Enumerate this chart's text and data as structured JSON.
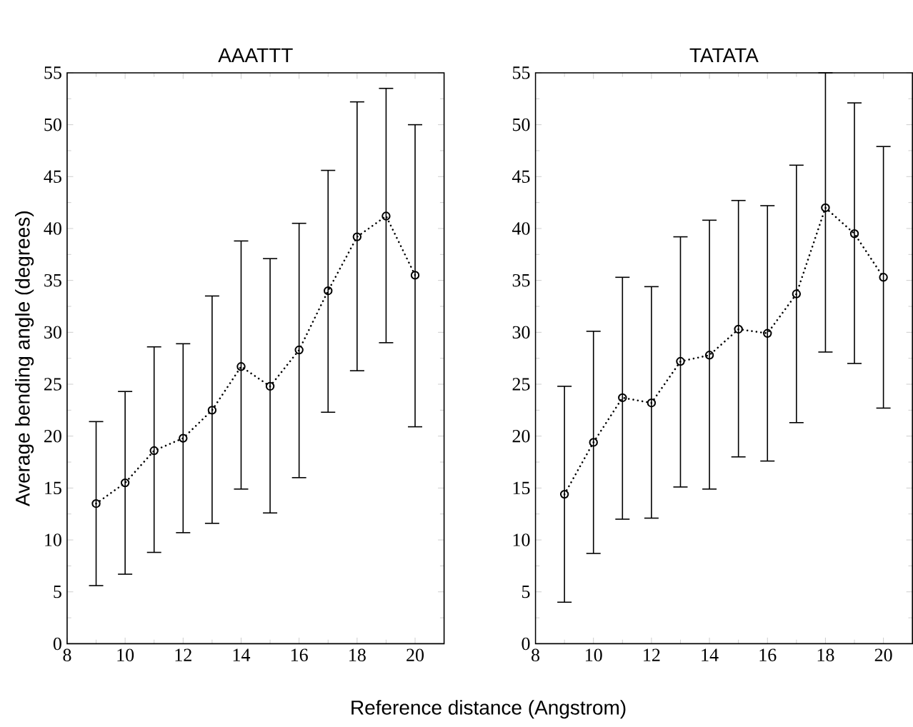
{
  "chart_data": [
    {
      "type": "line",
      "title": "AAATTT",
      "xlabel": "Reference distance (Angstrom)",
      "ylabel": "Average bending angle (degrees)",
      "x": [
        9,
        10,
        11,
        12,
        13,
        14,
        15,
        16,
        17,
        18,
        19,
        20
      ],
      "series": [
        {
          "color": "#000000",
          "values": [
            13.5,
            15.5,
            18.6,
            19.8,
            22.5,
            26.7,
            24.8,
            28.3,
            34.0,
            39.2,
            41.2,
            35.5
          ],
          "errors": [
            [
              5.6,
              21.4
            ],
            [
              6.7,
              24.3
            ],
            [
              8.8,
              28.6
            ],
            [
              10.7,
              28.9
            ],
            [
              11.6,
              33.5
            ],
            [
              14.9,
              38.8
            ],
            [
              12.6,
              37.1
            ],
            [
              16.0,
              40.5
            ],
            [
              22.3,
              45.6
            ],
            [
              26.3,
              52.2
            ],
            [
              29.0,
              53.5
            ],
            [
              20.9,
              50.0
            ]
          ]
        }
      ],
      "xlim": [
        8,
        21
      ],
      "ylim": [
        0,
        55
      ],
      "xticks": [
        8,
        10,
        12,
        14,
        16,
        18,
        20
      ],
      "yticks": [
        0,
        5,
        10,
        15,
        20,
        25,
        30,
        35,
        40,
        45,
        50,
        55
      ],
      "marker": "circle",
      "line_style": "dotted",
      "grid": false
    },
    {
      "type": "line",
      "title": "TATATA",
      "x": [
        9,
        10,
        11,
        12,
        13,
        14,
        15,
        16,
        17,
        18,
        19,
        20
      ],
      "series": [
        {
          "color": "#000000",
          "values": [
            14.4,
            19.4,
            23.7,
            23.2,
            27.2,
            27.8,
            30.3,
            29.9,
            33.7,
            42.0,
            39.5,
            35.3
          ],
          "errors": [
            [
              4.0,
              24.8
            ],
            [
              8.7,
              30.1
            ],
            [
              12.0,
              35.3
            ],
            [
              12.1,
              34.4
            ],
            [
              15.1,
              39.2
            ],
            [
              14.9,
              40.8
            ],
            [
              18.0,
              42.7
            ],
            [
              17.6,
              42.2
            ],
            [
              21.3,
              46.1
            ],
            [
              28.1,
              55
            ],
            [
              27.0,
              52.1
            ],
            [
              22.7,
              47.9
            ]
          ]
        }
      ],
      "xlim": [
        8,
        21
      ],
      "ylim": [
        0,
        55
      ],
      "xticks": [
        8,
        10,
        12,
        14,
        16,
        18,
        20
      ],
      "yticks": [
        0,
        5,
        10,
        15,
        20,
        25,
        30,
        35,
        40,
        45,
        50,
        55
      ],
      "marker": "circle",
      "line_style": "dotted",
      "grid": false
    }
  ]
}
